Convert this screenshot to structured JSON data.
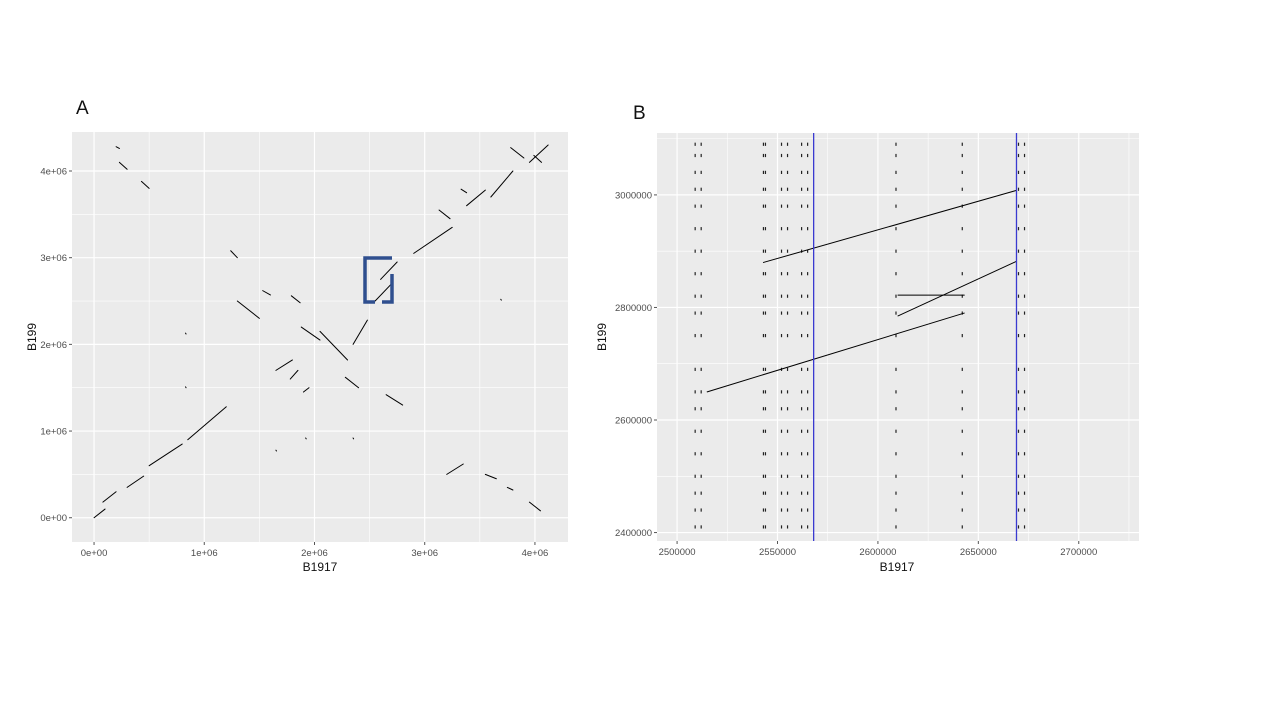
{
  "panels": {
    "a": {
      "label": "A"
    },
    "b": {
      "label": "B"
    }
  },
  "colors": {
    "panel_bg": "#ebebeb",
    "grid": "#ffffff",
    "segment": "#000000",
    "highlight_box": "#2f4f8f",
    "vline": "#3a3ad0"
  },
  "chart_data": [
    {
      "type": "scatter",
      "panel": "A",
      "title": "",
      "xlabel": "B1917",
      "ylabel": "B199",
      "xlim": [
        -200000,
        4300000
      ],
      "ylim": [
        -280000,
        4450000
      ],
      "x_ticks": [
        0,
        1000000,
        2000000,
        3000000,
        4000000
      ],
      "x_tick_labels": [
        "0e+00",
        "1e+06",
        "2e+06",
        "3e+06",
        "4e+06"
      ],
      "y_ticks": [
        0,
        1000000,
        2000000,
        3000000,
        4000000
      ],
      "y_tick_labels": [
        "0e+00",
        "1e+06",
        "2e+06",
        "3e+06",
        "4e+06"
      ],
      "grid": true,
      "segments": [
        [
          0,
          0,
          100000,
          100000
        ],
        [
          80000,
          180000,
          200000,
          300000
        ],
        [
          300000,
          350000,
          450000,
          480000
        ],
        [
          500000,
          600000,
          800000,
          850000
        ],
        [
          850000,
          900000,
          1200000,
          1280000
        ],
        [
          1650000,
          1700000,
          1800000,
          1820000
        ],
        [
          1780000,
          1600000,
          1850000,
          1700000
        ],
        [
          1900000,
          1450000,
          1950000,
          1500000
        ],
        [
          2350000,
          2000000,
          2480000,
          2280000
        ],
        [
          2550000,
          2500000,
          2700000,
          2700000
        ],
        [
          2600000,
          2750000,
          2750000,
          2950000
        ],
        [
          2900000,
          3050000,
          3250000,
          3350000
        ],
        [
          3380000,
          3600000,
          3550000,
          3780000
        ],
        [
          3600000,
          3700000,
          3800000,
          4000000
        ],
        [
          3950000,
          4100000,
          4120000,
          4300000
        ],
        [
          3200000,
          500000,
          3350000,
          620000
        ],
        [
          3550000,
          500000,
          3650000,
          450000
        ],
        [
          3750000,
          350000,
          3800000,
          320000
        ],
        [
          3950000,
          180000,
          4050000,
          80000
        ],
        [
          2050000,
          2150000,
          2300000,
          1820000
        ],
        [
          1880000,
          2200000,
          2050000,
          2050000
        ],
        [
          2280000,
          1620000,
          2400000,
          1500000
        ],
        [
          2650000,
          1420000,
          2800000,
          1300000
        ],
        [
          1300000,
          2500000,
          1500000,
          2300000
        ],
        [
          1530000,
          2620000,
          1600000,
          2570000
        ],
        [
          1790000,
          2560000,
          1870000,
          2480000
        ],
        [
          1240000,
          3080000,
          1300000,
          3000000
        ],
        [
          3130000,
          3550000,
          3230000,
          3450000
        ],
        [
          3330000,
          3790000,
          3380000,
          3750000
        ],
        [
          3780000,
          4270000,
          3900000,
          4150000
        ],
        [
          3990000,
          4180000,
          4060000,
          4100000
        ],
        [
          200000,
          4280000,
          230000,
          4260000
        ],
        [
          230000,
          4100000,
          300000,
          4020000
        ],
        [
          430000,
          3880000,
          500000,
          3800000
        ],
        [
          830000,
          2130000,
          835000,
          2120000
        ],
        [
          830000,
          1510000,
          835000,
          1500000
        ],
        [
          1650000,
          780000,
          1655000,
          770000
        ],
        [
          1920000,
          920000,
          1925000,
          910000
        ],
        [
          2350000,
          920000,
          2355000,
          910000
        ],
        [
          3690000,
          2520000,
          3695000,
          2510000
        ]
      ]
    },
    {
      "type": "scatter",
      "panel": "B",
      "title": "",
      "xlabel": "B1917",
      "ylabel": "B199",
      "xlim": [
        2490000,
        2730000
      ],
      "ylim": [
        2385000,
        3110000
      ],
      "x_ticks": [
        2500000,
        2550000,
        2600000,
        2650000,
        2700000
      ],
      "x_tick_labels": [
        "2500000",
        "2550000",
        "2600000",
        "2650000",
        "2700000"
      ],
      "y_ticks": [
        2400000,
        2600000,
        2800000,
        3000000
      ],
      "y_tick_labels": [
        "2400000",
        "2600000",
        "2800000",
        "3000000"
      ],
      "grid": true,
      "vlines": [
        2568000,
        2669000
      ],
      "segments": [
        [
          2515000,
          2650000,
          2643000,
          2790000
        ],
        [
          2543000,
          2880000,
          2669000,
          3008000
        ],
        [
          2610000,
          2785000,
          2669000,
          2882000
        ],
        [
          2610000,
          2822000,
          2643000,
          2822000
        ]
      ],
      "dot_columns_x": [
        2509000,
        2512000,
        2543000,
        2544000,
        2552000,
        2555000,
        2562000,
        2565000,
        2609000,
        2642000,
        2670000,
        2673000
      ],
      "dot_rows_y": [
        2410000,
        2440000,
        2470000,
        2500000,
        2540000,
        2580000,
        2620000,
        2650000,
        2690000,
        2750000,
        2790000,
        2820000,
        2860000,
        2900000,
        2940000,
        2980000,
        3010000,
        3040000,
        3070000,
        3090000
      ]
    }
  ]
}
